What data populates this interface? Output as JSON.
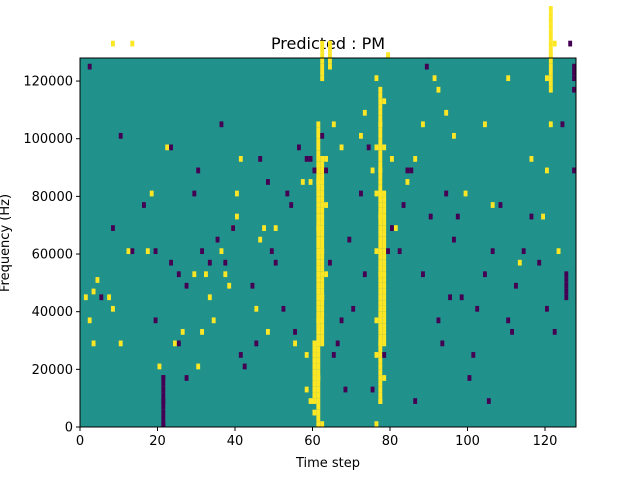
{
  "chart_data": {
    "type": "heatmap",
    "title": "Predicted : PM",
    "xlabel": "Time step",
    "ylabel": "Frequency (Hz)",
    "xlim": [
      0,
      128
    ],
    "ylim": [
      0,
      128000
    ],
    "x_ticks": [
      0,
      20,
      40,
      60,
      80,
      100,
      120
    ],
    "x_tick_labels": [
      "0",
      "20",
      "40",
      "60",
      "80",
      "100",
      "120"
    ],
    "y_ticks": [
      0,
      20000,
      40000,
      60000,
      80000,
      100000,
      120000
    ],
    "y_tick_labels": [
      "0",
      "20000",
      "40000",
      "60000",
      "80000",
      "100000",
      "120000"
    ],
    "grid": false,
    "colorbar": false,
    "colormap": "viridis",
    "colors": {
      "background": "#21918c",
      "high": "#fde725",
      "low": "#440154"
    },
    "time_bins": 128,
    "frequency_bins": 64,
    "cell_height_hz": 2000,
    "high_cells": [
      [
        1,
        22
      ],
      [
        2,
        18
      ],
      [
        3,
        14
      ],
      [
        3,
        23
      ],
      [
        4,
        25
      ],
      [
        7,
        22
      ],
      [
        8,
        20
      ],
      [
        8,
        66
      ],
      [
        10,
        14
      ],
      [
        12,
        30
      ],
      [
        13,
        66
      ],
      [
        17,
        30
      ],
      [
        18,
        40
      ],
      [
        20,
        10
      ],
      [
        22,
        48
      ],
      [
        24,
        14
      ],
      [
        26,
        16
      ],
      [
        29,
        26
      ],
      [
        30,
        10
      ],
      [
        31,
        16
      ],
      [
        32,
        26
      ],
      [
        33,
        22
      ],
      [
        34,
        18
      ],
      [
        36,
        30
      ],
      [
        37,
        26
      ],
      [
        38,
        24
      ],
      [
        39,
        34
      ],
      [
        40,
        36
      ],
      [
        40,
        40
      ],
      [
        41,
        46
      ],
      [
        45,
        20
      ],
      [
        46,
        32
      ],
      [
        47,
        34
      ],
      [
        48,
        16
      ],
      [
        50,
        34
      ],
      [
        55,
        14
      ],
      [
        57,
        42
      ],
      [
        59,
        42
      ],
      [
        63,
        46
      ],
      [
        65,
        52
      ],
      [
        67,
        48
      ],
      [
        72,
        50
      ],
      [
        73,
        54
      ],
      [
        75,
        44
      ],
      [
        77,
        40
      ],
      [
        78,
        48
      ],
      [
        80,
        46
      ],
      [
        81,
        34
      ],
      [
        84,
        42
      ],
      [
        86,
        46
      ],
      [
        88,
        52
      ],
      [
        91,
        60
      ],
      [
        92,
        58
      ],
      [
        94,
        54
      ],
      [
        96,
        50
      ],
      [
        99,
        40
      ],
      [
        104,
        52
      ],
      [
        106,
        38
      ],
      [
        110,
        60
      ],
      [
        113,
        28
      ],
      [
        116,
        46
      ],
      [
        119,
        36
      ],
      [
        120,
        44
      ],
      [
        121,
        52
      ],
      [
        123,
        30
      ],
      [
        58,
        6
      ],
      [
        59,
        4
      ],
      [
        60,
        2
      ],
      [
        61,
        8
      ],
      [
        62,
        0
      ],
      [
        58,
        12
      ],
      [
        60,
        14
      ],
      [
        61,
        18
      ],
      [
        62,
        22
      ],
      [
        63,
        26
      ],
      [
        62,
        30
      ],
      [
        61,
        34
      ],
      [
        63,
        38
      ],
      [
        61,
        42
      ],
      [
        62,
        22
      ],
      [
        76,
        0
      ],
      [
        77,
        4
      ],
      [
        78,
        8
      ],
      [
        76,
        12
      ],
      [
        77,
        14
      ],
      [
        76,
        18
      ],
      [
        77,
        26
      ],
      [
        76,
        30
      ],
      [
        77,
        36
      ],
      [
        76,
        40
      ],
      [
        77,
        44
      ],
      [
        76,
        48
      ],
      [
        77,
        52
      ],
      [
        78,
        56
      ],
      [
        76,
        60
      ],
      [
        79,
        64
      ],
      [
        120,
        60
      ],
      [
        121,
        64
      ],
      [
        122,
        66
      ]
    ],
    "high_columns": [
      {
        "x": 61,
        "from": 0,
        "to": 52
      },
      {
        "x": 62,
        "from": 14,
        "to": 46
      },
      {
        "x": 60,
        "from": 4,
        "to": 14
      },
      {
        "x": 62,
        "from": 60,
        "to": 66
      },
      {
        "x": 64,
        "from": 62,
        "to": 66
      },
      {
        "x": 77,
        "from": 4,
        "to": 58
      },
      {
        "x": 78,
        "from": 14,
        "to": 40
      },
      {
        "x": 121,
        "from": 58,
        "to": 72
      }
    ],
    "low_cells": [
      [
        2,
        62
      ],
      [
        5,
        22
      ],
      [
        8,
        34
      ],
      [
        10,
        50
      ],
      [
        13,
        30
      ],
      [
        16,
        38
      ],
      [
        19,
        18
      ],
      [
        21,
        8
      ],
      [
        23,
        28
      ],
      [
        25,
        14
      ],
      [
        27,
        24
      ],
      [
        30,
        44
      ],
      [
        33,
        28
      ],
      [
        35,
        32
      ],
      [
        36,
        52
      ],
      [
        39,
        34
      ],
      [
        42,
        10
      ],
      [
        44,
        24
      ],
      [
        46,
        46
      ],
      [
        48,
        42
      ],
      [
        50,
        28
      ],
      [
        52,
        20
      ],
      [
        54,
        38
      ],
      [
        56,
        48
      ],
      [
        58,
        46
      ],
      [
        60,
        44
      ],
      [
        62,
        50
      ],
      [
        64,
        28
      ],
      [
        66,
        14
      ],
      [
        68,
        6
      ],
      [
        70,
        20
      ],
      [
        72,
        40
      ],
      [
        74,
        48
      ],
      [
        75,
        6
      ],
      [
        78,
        12
      ],
      [
        80,
        34
      ],
      [
        82,
        30
      ],
      [
        84,
        44
      ],
      [
        86,
        4
      ],
      [
        88,
        26
      ],
      [
        90,
        36
      ],
      [
        92,
        18
      ],
      [
        94,
        40
      ],
      [
        96,
        32
      ],
      [
        98,
        22
      ],
      [
        100,
        8
      ],
      [
        102,
        20
      ],
      [
        104,
        26
      ],
      [
        106,
        30
      ],
      [
        108,
        38
      ],
      [
        110,
        18
      ],
      [
        112,
        24
      ],
      [
        114,
        30
      ],
      [
        116,
        36
      ],
      [
        118,
        28
      ],
      [
        120,
        20
      ],
      [
        122,
        16
      ],
      [
        124,
        52
      ],
      [
        126,
        66
      ],
      [
        127,
        58
      ],
      [
        127,
        44
      ],
      [
        111,
        16
      ],
      [
        105,
        4
      ],
      [
        101,
        12
      ],
      [
        97,
        36
      ],
      [
        95,
        22
      ],
      [
        93,
        14
      ],
      [
        89,
        62
      ],
      [
        85,
        44
      ],
      [
        83,
        38
      ],
      [
        79,
        30
      ],
      [
        73,
        26
      ],
      [
        69,
        32
      ],
      [
        67,
        18
      ],
      [
        65,
        12
      ],
      [
        63,
        44
      ],
      [
        59,
        46
      ],
      [
        55,
        16
      ],
      [
        53,
        40
      ],
      [
        49,
        30
      ],
      [
        45,
        14
      ],
      [
        41,
        12
      ],
      [
        37,
        28
      ],
      [
        31,
        30
      ],
      [
        29,
        40
      ],
      [
        27,
        8
      ],
      [
        25,
        26
      ],
      [
        23,
        48
      ],
      [
        21,
        4
      ],
      [
        21,
        0
      ],
      [
        19,
        30
      ]
    ],
    "low_columns": [
      {
        "x": 21,
        "from": 0,
        "to": 8
      },
      {
        "x": 125,
        "from": 22,
        "to": 26
      },
      {
        "x": 127,
        "from": 60,
        "to": 62
      }
    ]
  }
}
